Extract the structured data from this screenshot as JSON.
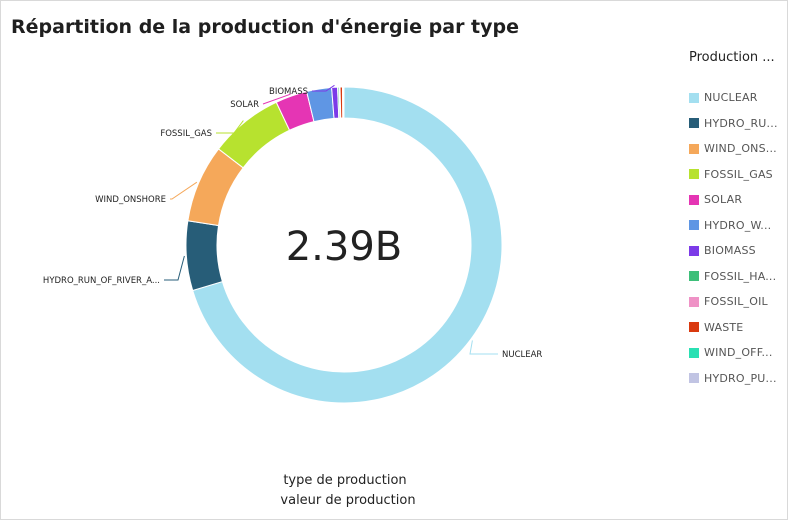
{
  "title": "Répartition de la production d'énergie par type",
  "legend_title": "Production ...",
  "center_label": "2.39B",
  "captions": {
    "group_by": "type de production",
    "value": "valeur de production"
  },
  "chart_data": {
    "type": "pie",
    "donut": true,
    "total": 2390000000,
    "slice_labels_shown": [
      "NUCLEAR",
      "HYDRO_RUN_OF_RIVER_A...",
      "WIND_ONSHORE",
      "FOSSIL_GAS",
      "SOLAR",
      "BIOMASS"
    ],
    "slices": [
      {
        "label": "NUCLEAR",
        "legend": "NUCLEAR",
        "value": 0.7035,
        "color": "#a3dff0"
      },
      {
        "label": "HYDRO_RUN_OF_RIVER_A...",
        "legend": "HYDRO_RU...",
        "value": 0.071,
        "color": "#275d78"
      },
      {
        "label": "WIND_ONSHORE",
        "legend": "WIND_ONS...",
        "value": 0.0795,
        "color": "#f5a85a"
      },
      {
        "label": "FOSSIL_GAS",
        "legend": "FOSSIL_GAS",
        "value": 0.0755,
        "color": "#b7e22f"
      },
      {
        "label": "SOLAR",
        "legend": "SOLAR",
        "value": 0.0325,
        "color": "#e535b4"
      },
      {
        "label": "",
        "legend": "HYDRO_W...",
        "value": 0.0255,
        "color": "#5f96e4"
      },
      {
        "label": "BIOMASS",
        "legend": "BIOMASS",
        "value": 0.006,
        "color": "#7c3be8"
      },
      {
        "label": "",
        "legend": "FOSSIL_HA...",
        "value": 0.0015,
        "color": "#3dbf79"
      },
      {
        "label": "",
        "legend": "FOSSIL_OIL",
        "value": 0.001,
        "color": "#ef92c6"
      },
      {
        "label": "",
        "legend": "WASTE",
        "value": 0.0025,
        "color": "#d9390f"
      },
      {
        "label": "",
        "legend": "WIND_OFF...",
        "value": 0.0005,
        "color": "#2ae0b3"
      },
      {
        "label": "",
        "legend": "HYDRO_PU...",
        "value": 0.001,
        "color": "#c1c4e3"
      }
    ]
  }
}
